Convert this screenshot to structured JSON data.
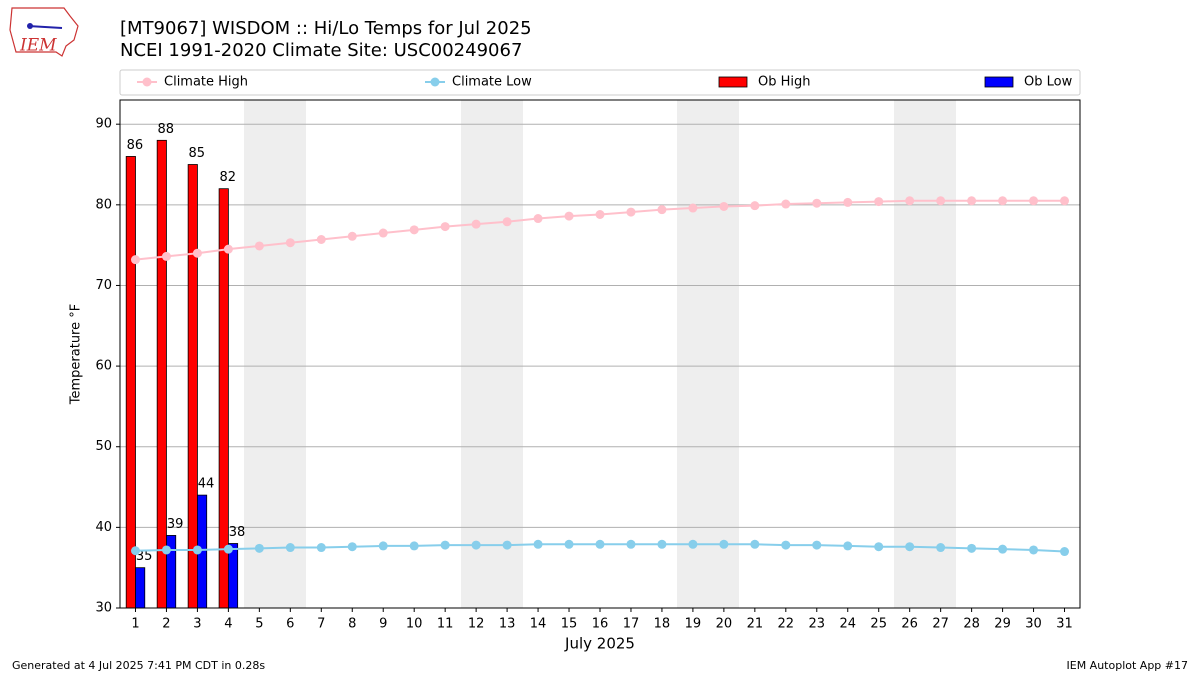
{
  "logo_text": "IEM",
  "footer_left": "Generated at 4 Jul 2025 7:41 PM CDT in 0.28s",
  "footer_right": "IEM Autoplot App #17",
  "chart_data": {
    "type": "bar-line",
    "title": "[MT9067] WISDOM :: Hi/Lo Temps for Jul 2025",
    "subtitle": "NCEI 1991-2020 Climate Site: USC00249067",
    "xlabel": "July 2025",
    "ylabel": "Temperature °F",
    "x": [
      1,
      2,
      3,
      4,
      5,
      6,
      7,
      8,
      9,
      10,
      11,
      12,
      13,
      14,
      15,
      16,
      17,
      18,
      19,
      20,
      21,
      22,
      23,
      24,
      25,
      26,
      27,
      28,
      29,
      30,
      31
    ],
    "xlim": [
      0.5,
      31.5
    ],
    "xticks": [
      1,
      2,
      3,
      4,
      5,
      6,
      7,
      8,
      9,
      10,
      11,
      12,
      13,
      14,
      15,
      16,
      17,
      18,
      19,
      20,
      21,
      22,
      23,
      24,
      25,
      26,
      27,
      28,
      29,
      30,
      31
    ],
    "ylim": [
      30,
      93
    ],
    "yticks": [
      30,
      40,
      50,
      60,
      70,
      80,
      90
    ],
    "grid": true,
    "legend": "top",
    "series": [
      {
        "name": "Climate High",
        "kind": "line",
        "color": "#ffc0cb",
        "values": [
          73.2,
          73.6,
          74.0,
          74.5,
          74.9,
          75.3,
          75.7,
          76.1,
          76.5,
          76.9,
          77.3,
          77.6,
          77.9,
          78.3,
          78.6,
          78.8,
          79.1,
          79.4,
          79.6,
          79.8,
          79.9,
          80.1,
          80.2,
          80.3,
          80.4,
          80.5,
          80.5,
          80.5,
          80.5,
          80.5,
          80.5
        ]
      },
      {
        "name": "Climate Low",
        "kind": "line",
        "color": "#87ceeb",
        "values": [
          37.1,
          37.2,
          37.2,
          37.3,
          37.4,
          37.5,
          37.5,
          37.6,
          37.7,
          37.7,
          37.8,
          37.8,
          37.8,
          37.9,
          37.9,
          37.9,
          37.9,
          37.9,
          37.9,
          37.9,
          37.9,
          37.8,
          37.8,
          37.7,
          37.6,
          37.6,
          37.5,
          37.4,
          37.3,
          37.2,
          37.0
        ]
      },
      {
        "name": "Ob High",
        "kind": "bar",
        "color": "#ff0000",
        "values": [
          86,
          88,
          85,
          82,
          null,
          null,
          null,
          null,
          null,
          null,
          null,
          null,
          null,
          null,
          null,
          null,
          null,
          null,
          null,
          null,
          null,
          null,
          null,
          null,
          null,
          null,
          null,
          null,
          null,
          null,
          null
        ]
      },
      {
        "name": "Ob Low",
        "kind": "bar",
        "color": "#0000ff",
        "values": [
          35,
          39,
          44,
          38,
          null,
          null,
          null,
          null,
          null,
          null,
          null,
          null,
          null,
          null,
          null,
          null,
          null,
          null,
          null,
          null,
          null,
          null,
          null,
          null,
          null,
          null,
          null,
          null,
          null,
          null,
          null
        ]
      }
    ]
  }
}
